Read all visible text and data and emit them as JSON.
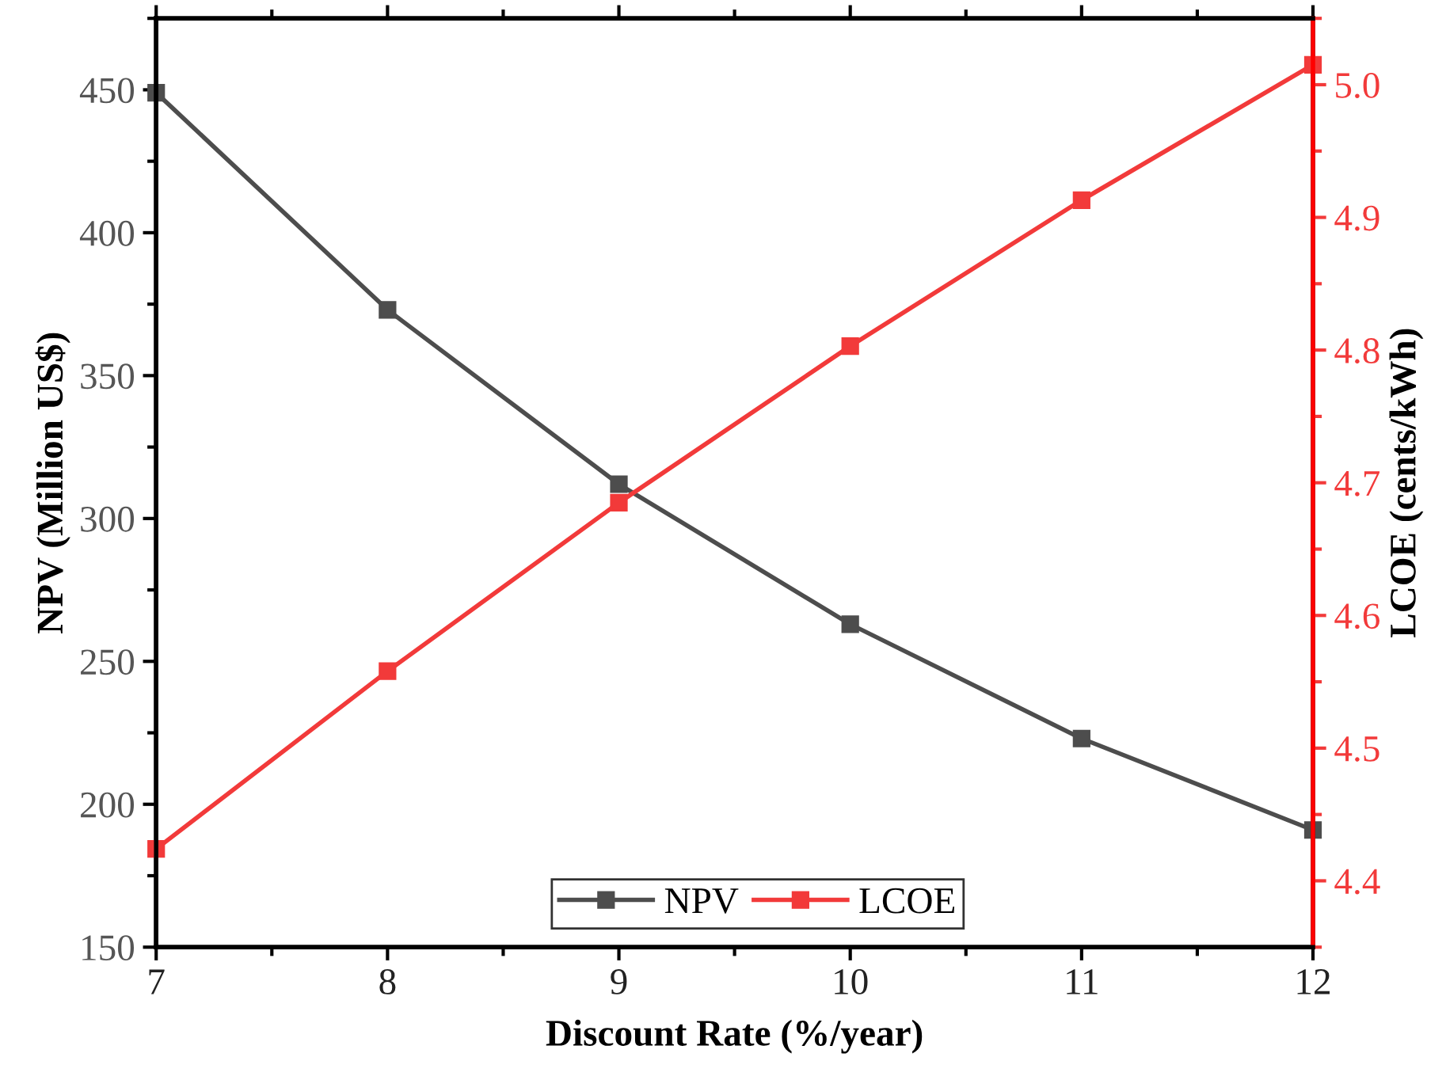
{
  "chart_data": {
    "type": "line",
    "xlabel": "Discount Rate (%/year)",
    "ylabel": "NPV (Million US$)",
    "y2label": "LCOE (cents/kWh)",
    "x": [
      7,
      8,
      9,
      10,
      11,
      12
    ],
    "series": [
      {
        "name": "NPV",
        "color": "#4d4d4d",
        "values": [
          449,
          373,
          312,
          263,
          223,
          191
        ]
      },
      {
        "name": "LCOE",
        "color": "#f23a3a",
        "axis": "y2",
        "values": [
          4.424,
          4.558,
          4.685,
          4.803,
          4.913,
          5.015
        ]
      }
    ],
    "xlim": [
      7,
      12
    ],
    "xticks": [
      7,
      8,
      9,
      10,
      11,
      12
    ],
    "ylim": [
      150,
      475
    ],
    "yticks": [
      150,
      200,
      250,
      300,
      350,
      400,
      450
    ],
    "y2lim": [
      4.35,
      5.05
    ],
    "y2ticks": [
      4.4,
      4.5,
      4.6,
      4.7,
      4.8,
      4.9,
      {
        "value": 5,
        "label": "5.0"
      }
    ],
    "marker": "square",
    "line_style": "solid",
    "grid": false,
    "legend": "bottom"
  }
}
